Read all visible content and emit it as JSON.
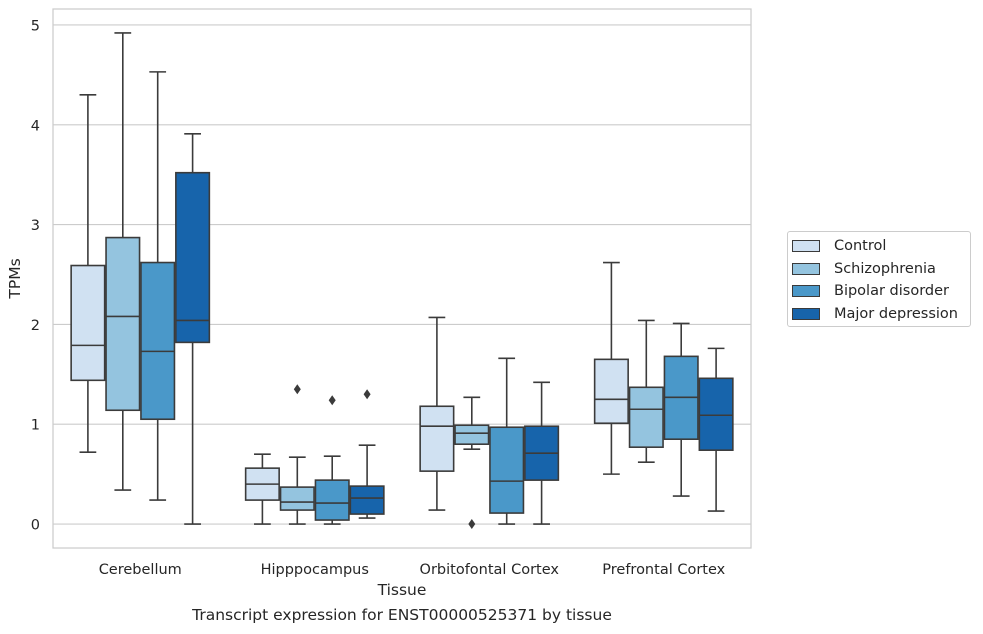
{
  "chart_data": {
    "type": "boxplot",
    "xlabel": "Tissue",
    "ylabel": "TPMs",
    "ylim": [
      -0.24,
      5.16
    ],
    "yticks": [
      0,
      1,
      2,
      3,
      4,
      5
    ],
    "grid": "horizontal",
    "legend_position": "right",
    "categories": [
      "Cerebellum",
      "Hipppocampus",
      "Orbitofontal Cortex",
      "Prefrontal Cortex"
    ],
    "series": [
      {
        "name": "Control",
        "color": "#d0e1f2",
        "boxes": [
          {
            "whislo": 0.72,
            "q1": 1.44,
            "med": 1.79,
            "q3": 2.59,
            "whishi": 4.3,
            "fliers": []
          },
          {
            "whislo": 0.0,
            "q1": 0.24,
            "med": 0.4,
            "q3": 0.56,
            "whishi": 0.7,
            "fliers": []
          },
          {
            "whislo": 0.14,
            "q1": 0.53,
            "med": 0.98,
            "q3": 1.18,
            "whishi": 2.07,
            "fliers": []
          },
          {
            "whislo": 0.5,
            "q1": 1.01,
            "med": 1.25,
            "q3": 1.65,
            "whishi": 2.62,
            "fliers": []
          }
        ]
      },
      {
        "name": "Schizophrenia",
        "color": "#94c4df",
        "boxes": [
          {
            "whislo": 0.34,
            "q1": 1.14,
            "med": 2.08,
            "q3": 2.87,
            "whishi": 4.92,
            "fliers": []
          },
          {
            "whislo": 0.0,
            "q1": 0.14,
            "med": 0.22,
            "q3": 0.37,
            "whishi": 0.67,
            "fliers": [
              1.35
            ]
          },
          {
            "whislo": 0.75,
            "q1": 0.8,
            "med": 0.91,
            "q3": 0.99,
            "whishi": 1.27,
            "fliers": [
              0.0
            ]
          },
          {
            "whislo": 0.62,
            "q1": 0.77,
            "med": 1.15,
            "q3": 1.37,
            "whishi": 2.04,
            "fliers": []
          }
        ]
      },
      {
        "name": "Bipolar disorder",
        "color": "#4a98c9",
        "boxes": [
          {
            "whislo": 0.24,
            "q1": 1.05,
            "med": 1.73,
            "q3": 2.62,
            "whishi": 4.53,
            "fliers": []
          },
          {
            "whislo": 0.0,
            "q1": 0.04,
            "med": 0.21,
            "q3": 0.44,
            "whishi": 0.68,
            "fliers": [
              1.24
            ]
          },
          {
            "whislo": 0.0,
            "q1": 0.11,
            "med": 0.43,
            "q3": 0.97,
            "whishi": 1.66,
            "fliers": []
          },
          {
            "whislo": 0.28,
            "q1": 0.85,
            "med": 1.27,
            "q3": 1.68,
            "whishi": 2.01,
            "fliers": []
          }
        ]
      },
      {
        "name": "Major depression",
        "color": "#1764ab",
        "boxes": [
          {
            "whislo": 0.0,
            "q1": 1.82,
            "med": 2.04,
            "q3": 3.52,
            "whishi": 3.91,
            "fliers": []
          },
          {
            "whislo": 0.06,
            "q1": 0.1,
            "med": 0.26,
            "q3": 0.38,
            "whishi": 0.79,
            "fliers": [
              1.3
            ]
          },
          {
            "whislo": 0.0,
            "q1": 0.44,
            "med": 0.71,
            "q3": 0.98,
            "whishi": 1.42,
            "fliers": []
          },
          {
            "whislo": 0.13,
            "q1": 0.74,
            "med": 1.09,
            "q3": 1.46,
            "whishi": 1.76,
            "fliers": []
          }
        ]
      }
    ]
  },
  "caption": "Transcript expression for ENST00000525371 by tissue"
}
